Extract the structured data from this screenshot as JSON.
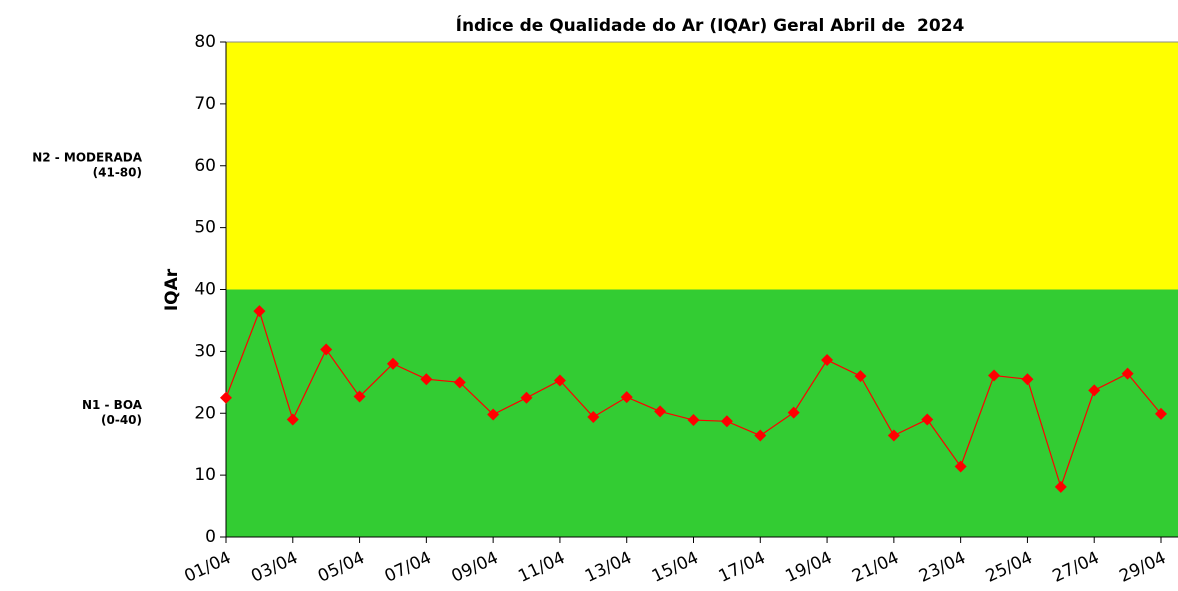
{
  "chart_data": {
    "type": "line",
    "title": "Índice de Qualidade do Ar (IQAr) Geral Abril de  2024",
    "y_label": "IQAr",
    "categories": [
      "01/04",
      null,
      "03/04",
      null,
      "05/04",
      null,
      "07/04",
      null,
      "09/04",
      null,
      "11/04",
      null,
      "13/04",
      null,
      "15/04",
      null,
      "17/04",
      null,
      "19/04",
      null,
      "21/04",
      null,
      "23/04",
      null,
      "25/04",
      null,
      "27/04",
      null,
      "29/04"
    ],
    "series": [
      {
        "name": "IQAr",
        "color": "#ff0000",
        "values": [
          22.5,
          36.5,
          19,
          30.3,
          22.7,
          28,
          25.5,
          25,
          19.8,
          22.5,
          25.3,
          19.4,
          22.6,
          20.3,
          18.9,
          18.7,
          16.4,
          20.1,
          28.6,
          26,
          16.4,
          19,
          11.4,
          26.1,
          25.5,
          8.1,
          23.7,
          26.4,
          19.9
        ]
      }
    ],
    "ylim": [
      0,
      80
    ],
    "yticks": [
      0,
      10,
      20,
      30,
      40,
      50,
      60,
      70,
      80
    ],
    "bands": [
      {
        "from": 0,
        "to": 40,
        "color": "#33cc33",
        "label": "N1 - BOA",
        "range": "(0-40)"
      },
      {
        "from": 40,
        "to": 80,
        "color": "#ffff00",
        "label": "N2 - MODERADA",
        "range": "(41-80)"
      }
    ]
  }
}
